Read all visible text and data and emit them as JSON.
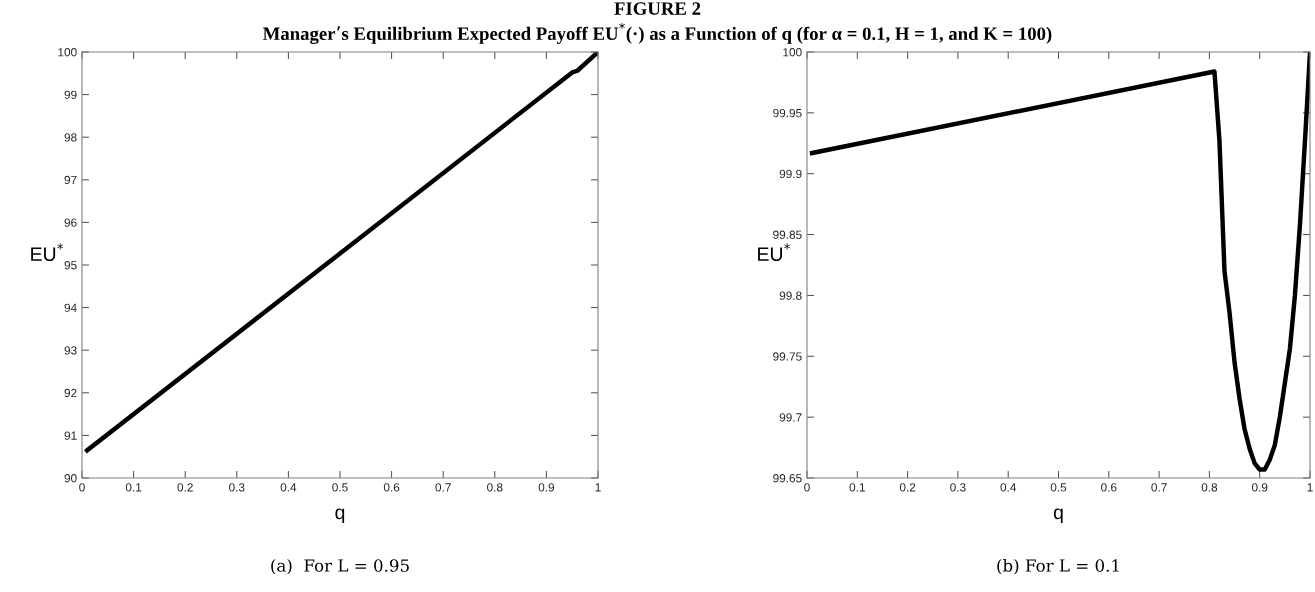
{
  "chart_data": [
    {
      "type": "line",
      "title": "FIGURE 2\nManager’s Equilibrium Expected Payoff EU$^{*}$(·) as a Function of q (for α = 0.1, H = 1, and K = 100)",
      "xlabel": "q",
      "ylabel": "EU$^{*}$",
      "annotations": [
        "(a)  For L = 0.95"
      ],
      "x": [
        0.01,
        0.5,
        0.95,
        0.96,
        1
      ],
      "series": [
        {
          "color": "#000000",
          "values": [
            90.65,
            95.27,
            99.52,
            99.56,
            100
          ]
        }
      ],
      "xlim": [
        0,
        1
      ],
      "ylim": [
        90,
        100
      ],
      "xticks": [
        0,
        0.1,
        0.2,
        0.3,
        0.4,
        0.5,
        0.6,
        0.7,
        0.8,
        0.9,
        1
      ],
      "yticks": [
        90,
        91,
        92,
        93,
        94,
        95,
        96,
        97,
        98,
        99,
        100
      ],
      "grid": false,
      "legend": false,
      "marker": "none",
      "line_style": "solid"
    },
    {
      "type": "line",
      "xlabel": "q",
      "ylabel": "EU$^{*}$",
      "annotations": [
        "(b) For L = 0.1"
      ],
      "x": [
        0.01,
        0.81,
        0.82,
        0.83,
        0.84,
        0.85,
        0.86,
        0.87,
        0.88,
        0.89,
        0.9,
        0.91,
        0.92,
        0.93,
        0.94,
        0.95,
        0.96,
        0.97,
        0.98,
        0.99,
        1
      ],
      "series": [
        {
          "color": "#000000",
          "values": [
            99.917,
            99.984,
            99.927,
            99.82,
            99.786,
            99.745,
            99.715,
            99.69,
            99.674,
            99.662,
            99.657,
            99.657,
            99.665,
            99.677,
            99.7,
            99.728,
            99.756,
            99.8,
            99.858,
            99.927,
            100
          ]
        }
      ],
      "xlim": [
        0,
        1
      ],
      "ylim": [
        99.65,
        100
      ],
      "xticks": [
        0,
        0.1,
        0.2,
        0.3,
        0.4,
        0.5,
        0.6,
        0.7,
        0.8,
        0.9,
        1
      ],
      "yticks": [
        99.65,
        99.7,
        99.75,
        99.8,
        99.85,
        99.9,
        99.95,
        100
      ],
      "grid": false,
      "legend": false,
      "marker": "none",
      "line_style": "solid"
    }
  ]
}
